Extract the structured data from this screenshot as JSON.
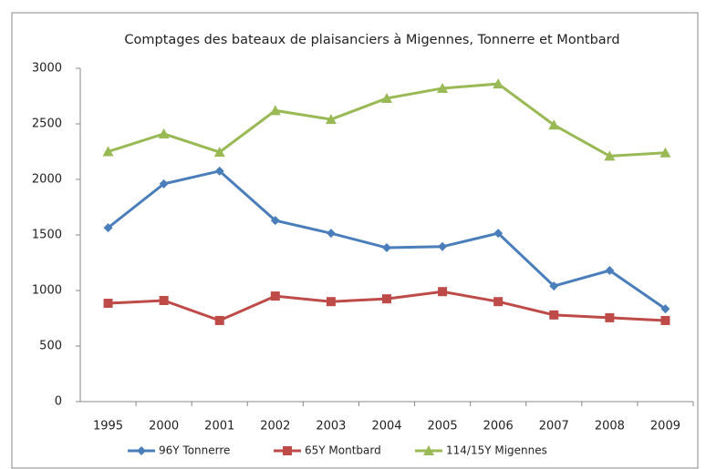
{
  "chart_data": {
    "type": "line",
    "title": "Comptages des bateaux de plaisanciers à Migennes, Tonnerre et Montbard",
    "categories": [
      "1995",
      "2000",
      "2001",
      "2002",
      "2003",
      "2004",
      "2005",
      "2006",
      "2007",
      "2008",
      "2009"
    ],
    "series": [
      {
        "name": "96Y Tonnerre",
        "color": "#4a7ebb",
        "marker": "diamond",
        "values": [
          1565,
          1960,
          2075,
          1630,
          1515,
          1385,
          1395,
          1515,
          1040,
          1180,
          835
        ]
      },
      {
        "name": "65Y Montbard",
        "color": "#be4b48",
        "marker": "square",
        "values": [
          885,
          910,
          730,
          950,
          900,
          925,
          990,
          900,
          780,
          755,
          730
        ]
      },
      {
        "name": "114/15Y Migennes",
        "color": "#98b954",
        "marker": "triangle",
        "values": [
          2250,
          2410,
          2245,
          2620,
          2540,
          2730,
          2820,
          2860,
          2490,
          2210,
          2240
        ]
      }
    ],
    "ylim": [
      0,
      3000
    ],
    "yticks": [
      0,
      500,
      1000,
      1500,
      2000,
      2500,
      3000
    ],
    "grid": false,
    "legend": "bottom"
  }
}
